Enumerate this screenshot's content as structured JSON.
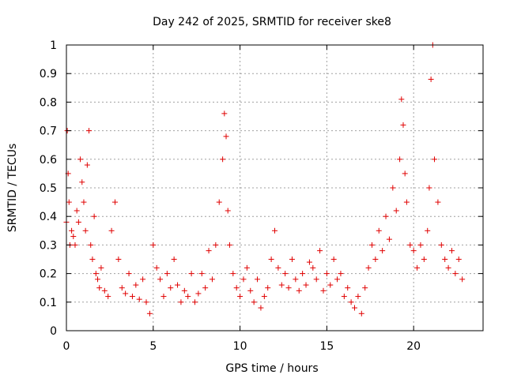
{
  "chart_data": {
    "type": "scatter",
    "title": "Day 242 of 2025, SRMTID for receiver ske8",
    "xlabel": "GPS time / hours",
    "ylabel": "SRMTID / TECUs",
    "xlim": [
      0,
      24
    ],
    "ylim": [
      0,
      1
    ],
    "xticks": [
      0,
      5,
      10,
      15,
      20
    ],
    "xtick_labels": [
      "0",
      "5",
      "10",
      "15",
      "20"
    ],
    "yticks": [
      0,
      0.1,
      0.2,
      0.3,
      0.4,
      0.5,
      0.6,
      0.7,
      0.8,
      0.9,
      1
    ],
    "ytick_labels": [
      "0",
      "0.1",
      "0.2",
      "0.3",
      "0.4",
      "0.5",
      "0.6",
      "0.7",
      "0.8",
      "0.9",
      "1"
    ],
    "grid": true,
    "marker": "+",
    "series": [
      {
        "name": "SRMTID",
        "color": "#e00000",
        "x": [
          0.0,
          0.05,
          0.1,
          0.15,
          0.2,
          0.3,
          0.4,
          0.5,
          0.6,
          0.7,
          0.8,
          0.9,
          1.0,
          1.1,
          1.2,
          1.3,
          1.4,
          1.5,
          1.6,
          1.7,
          1.8,
          1.9,
          2.0,
          2.2,
          2.4,
          2.6,
          2.8,
          3.0,
          3.2,
          3.4,
          3.6,
          3.8,
          4.0,
          4.2,
          4.4,
          4.6,
          4.8,
          5.0,
          5.2,
          5.4,
          5.6,
          5.8,
          6.0,
          6.2,
          6.4,
          6.6,
          6.8,
          7.0,
          7.2,
          7.4,
          7.6,
          7.8,
          8.0,
          8.2,
          8.4,
          8.6,
          8.8,
          9.0,
          9.1,
          9.2,
          9.3,
          9.4,
          9.6,
          9.8,
          10.0,
          10.2,
          10.4,
          10.6,
          10.8,
          11.0,
          11.2,
          11.4,
          11.6,
          11.8,
          12.0,
          12.2,
          12.4,
          12.6,
          12.8,
          13.0,
          13.2,
          13.4,
          13.6,
          13.8,
          14.0,
          14.2,
          14.4,
          14.6,
          14.8,
          15.0,
          15.2,
          15.4,
          15.6,
          15.8,
          16.0,
          16.2,
          16.4,
          16.6,
          16.8,
          17.0,
          17.2,
          17.4,
          17.6,
          17.8,
          18.0,
          18.2,
          18.4,
          18.6,
          18.8,
          19.0,
          19.2,
          19.3,
          19.4,
          19.5,
          19.6,
          19.8,
          20.0,
          20.2,
          20.4,
          20.6,
          20.8,
          20.9,
          21.0,
          21.1,
          21.2,
          21.4,
          21.6,
          21.8,
          22.0,
          22.2,
          22.4,
          22.6,
          22.8
        ],
        "y": [
          0.38,
          0.7,
          0.55,
          0.45,
          0.3,
          0.35,
          0.33,
          0.3,
          0.42,
          0.38,
          0.6,
          0.52,
          0.45,
          0.35,
          0.58,
          0.7,
          0.3,
          0.25,
          0.4,
          0.2,
          0.18,
          0.15,
          0.22,
          0.14,
          0.12,
          0.35,
          0.45,
          0.25,
          0.15,
          0.13,
          0.2,
          0.12,
          0.16,
          0.11,
          0.18,
          0.1,
          0.06,
          0.3,
          0.22,
          0.18,
          0.12,
          0.2,
          0.15,
          0.25,
          0.16,
          0.1,
          0.14,
          0.12,
          0.2,
          0.1,
          0.13,
          0.2,
          0.15,
          0.28,
          0.18,
          0.3,
          0.45,
          0.6,
          0.76,
          0.68,
          0.42,
          0.3,
          0.2,
          0.15,
          0.12,
          0.18,
          0.22,
          0.14,
          0.1,
          0.18,
          0.08,
          0.12,
          0.15,
          0.25,
          0.35,
          0.22,
          0.16,
          0.2,
          0.15,
          0.25,
          0.18,
          0.14,
          0.2,
          0.16,
          0.24,
          0.22,
          0.18,
          0.28,
          0.14,
          0.2,
          0.16,
          0.25,
          0.18,
          0.2,
          0.12,
          0.15,
          0.1,
          0.08,
          0.12,
          0.06,
          0.15,
          0.22,
          0.3,
          0.25,
          0.35,
          0.28,
          0.4,
          0.32,
          0.5,
          0.42,
          0.6,
          0.81,
          0.72,
          0.55,
          0.45,
          0.3,
          0.28,
          0.22,
          0.3,
          0.25,
          0.35,
          0.5,
          0.88,
          1.0,
          0.6,
          0.45,
          0.3,
          0.25,
          0.22,
          0.28,
          0.2,
          0.25,
          0.18
        ]
      }
    ]
  }
}
